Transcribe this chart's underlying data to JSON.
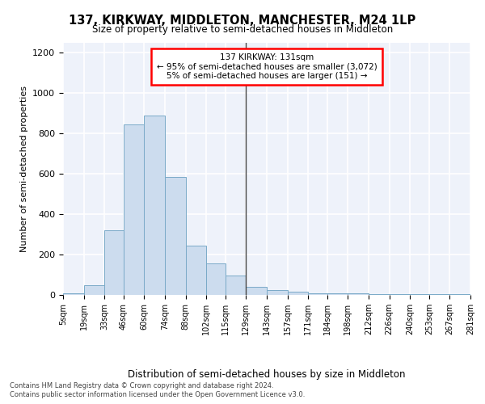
{
  "title": "137, KIRKWAY, MIDDLETON, MANCHESTER, M24 1LP",
  "subtitle": "Size of property relative to semi-detached houses in Middleton",
  "xlabel": "Distribution of semi-detached houses by size in Middleton",
  "ylabel": "Number of semi-detached properties",
  "bar_color": "#ccdcee",
  "bar_edge_color": "#7aaac8",
  "background_color": "#eef2fa",
  "grid_color": "#ffffff",
  "property_line_x": 129,
  "annotation_title": "137 KIRKWAY: 131sqm",
  "annotation_line1": "← 95% of semi-detached houses are smaller (3,072)",
  "annotation_line2": "5% of semi-detached houses are larger (151) →",
  "footer_line1": "Contains HM Land Registry data © Crown copyright and database right 2024.",
  "footer_line2": "Contains public sector information licensed under the Open Government Licence v3.0.",
  "bin_edges": [
    5,
    19,
    33,
    46,
    60,
    74,
    88,
    102,
    115,
    129,
    143,
    157,
    171,
    184,
    198,
    212,
    226,
    240,
    253,
    267,
    281
  ],
  "bin_labels": [
    "5sqm",
    "19sqm",
    "33sqm",
    "46sqm",
    "60sqm",
    "74sqm",
    "88sqm",
    "102sqm",
    "115sqm",
    "129sqm",
    "143sqm",
    "157sqm",
    "171sqm",
    "184sqm",
    "198sqm",
    "212sqm",
    "226sqm",
    "240sqm",
    "253sqm",
    "267sqm",
    "281sqm"
  ],
  "bar_heights": [
    10,
    50,
    320,
    845,
    890,
    585,
    245,
    155,
    95,
    40,
    25,
    18,
    10,
    10,
    10,
    5,
    5,
    5,
    3,
    3
  ],
  "ylim": [
    0,
    1250
  ],
  "yticks": [
    0,
    200,
    400,
    600,
    800,
    1000,
    1200
  ]
}
